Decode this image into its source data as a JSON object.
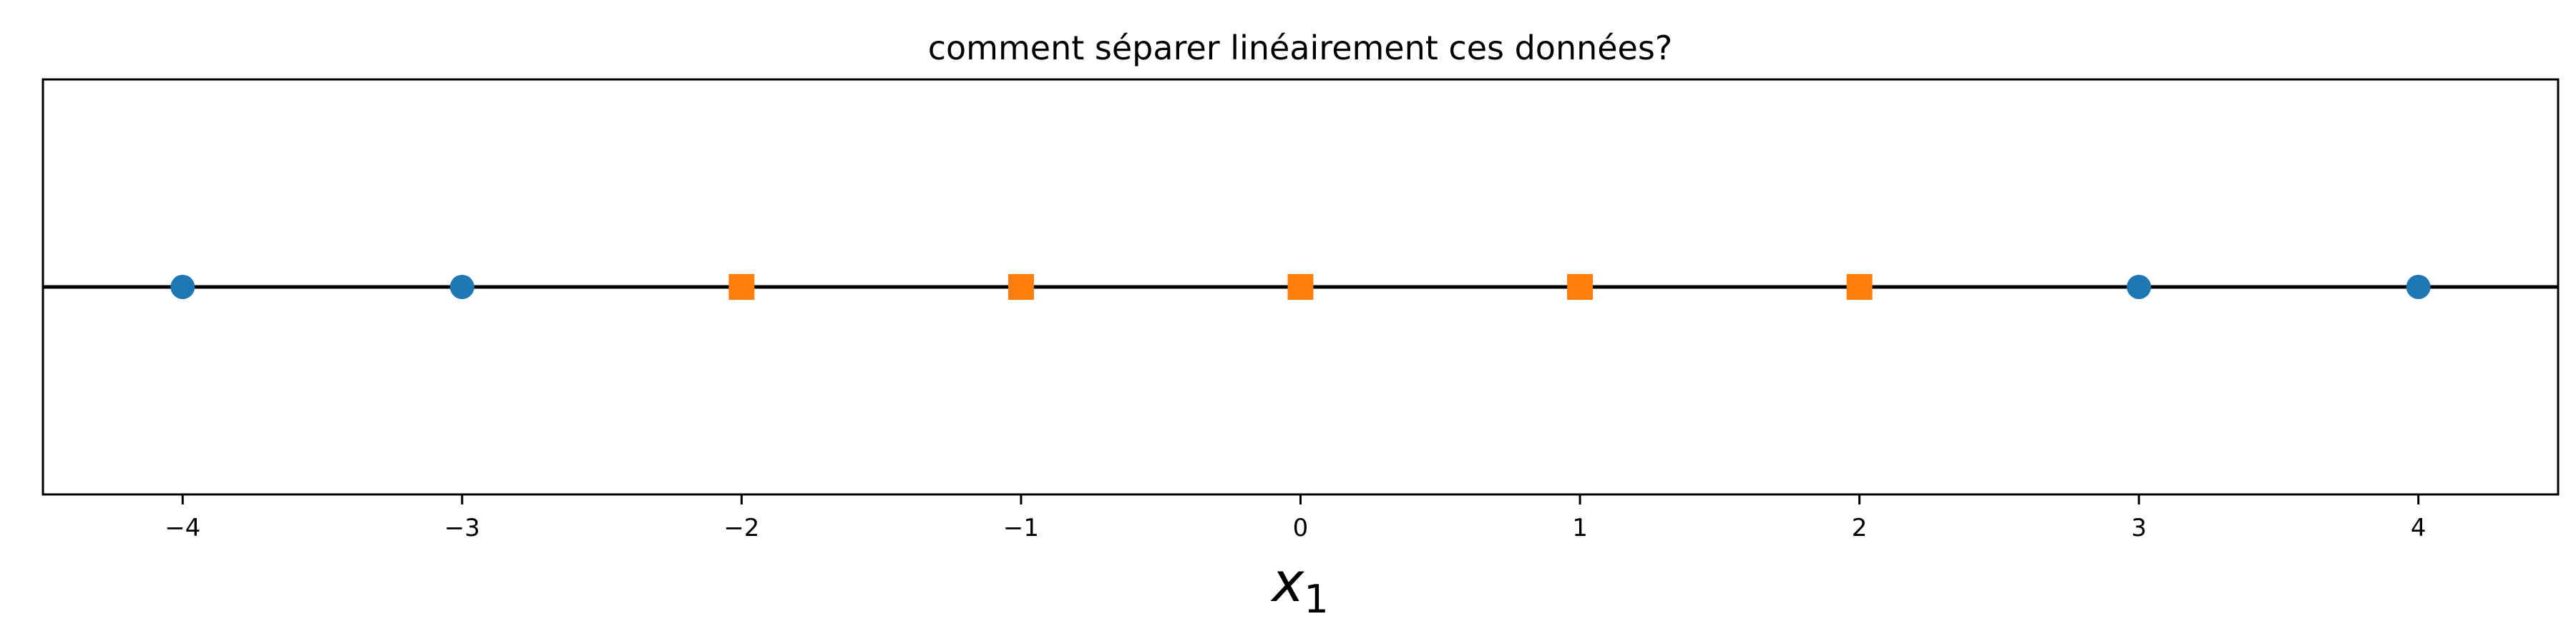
{
  "chart_data": {
    "type": "scatter",
    "title": "comment séparer linéairement ces données?",
    "xlabel": {
      "base": "x",
      "subscript": "1"
    },
    "ylabel": "",
    "xlim": [
      -4.5,
      4.5
    ],
    "ylim": [
      -1,
      1
    ],
    "grid": false,
    "axis_line_y": 0,
    "xticks": [
      -4,
      -3,
      -2,
      -1,
      0,
      1,
      2,
      3,
      4
    ],
    "xtick_labels": [
      "−4",
      "−3",
      "−2",
      "−1",
      "0",
      "1",
      "2",
      "3",
      "4"
    ],
    "series": [
      {
        "marker": "circle",
        "color": "#1f77b4",
        "x": [
          -4,
          -3,
          3,
          4
        ],
        "y": [
          0,
          0,
          0,
          0
        ]
      },
      {
        "marker": "square",
        "color": "#ff7f0e",
        "x": [
          -2,
          -1,
          0,
          1,
          2
        ],
        "y": [
          0,
          0,
          0,
          0,
          0
        ]
      }
    ]
  }
}
